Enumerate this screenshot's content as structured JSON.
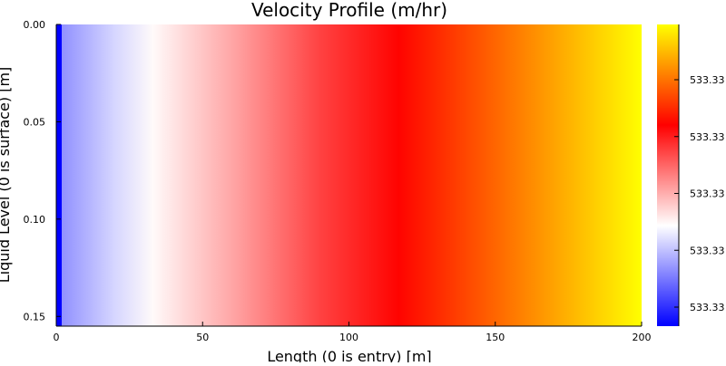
{
  "chart_data": {
    "type": "heatmap",
    "title": "Velocity Profile (m/hr)",
    "xlabel": "Length (0 is entry) [m]",
    "ylabel": "Liquid Level (0 is surface) [m]",
    "xlim": [
      0,
      200
    ],
    "ylim": [
      0,
      0.155
    ],
    "y_inverted": true,
    "x_ticks": [
      "0",
      "50",
      "100",
      "150",
      "200"
    ],
    "x_tick_values": [
      0,
      50,
      100,
      150,
      200
    ],
    "y_ticks": [
      "0.00",
      "0.05",
      "0.10",
      "0.15"
    ],
    "y_tick_values": [
      0,
      0.05,
      0.1,
      0.15
    ],
    "colorbar": {
      "tick_labels": [
        "533.33",
        "533.33",
        "533.33",
        "533.33",
        "533.33"
      ],
      "colormap": [
        "#0000ff",
        "#ffffff",
        "#ff0000",
        "#ffff00"
      ]
    },
    "profile": {
      "description_note": "",
      "x": [
        0,
        2,
        10,
        20,
        33,
        60,
        90,
        117,
        140,
        170,
        200
      ],
      "color_fraction": [
        0.0,
        0.19,
        0.23,
        0.28,
        0.34,
        0.45,
        0.58,
        0.67,
        0.76,
        0.88,
        1.0
      ]
    }
  }
}
